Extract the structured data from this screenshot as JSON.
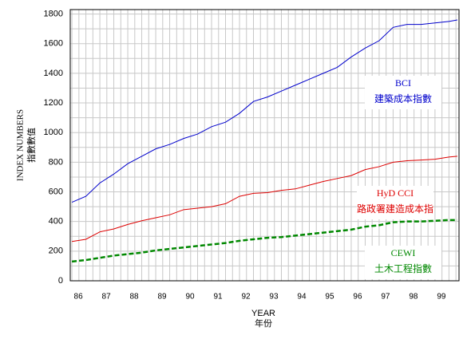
{
  "chart_data": {
    "type": "line",
    "y_label": [
      "INDEX NUMBERS",
      "指數數值"
    ],
    "x_label": [
      "YEAR",
      "年份"
    ],
    "x": [
      86,
      86.5,
      87,
      87.5,
      88,
      88.5,
      89,
      89.5,
      90,
      90.5,
      91,
      91.5,
      92,
      92.5,
      93,
      93.5,
      94,
      94.5,
      95,
      95.5,
      96,
      96.5,
      97,
      97.5,
      98,
      98.5,
      99,
      99.5,
      99.8
    ],
    "series": [
      {
        "name": "BCI",
        "name_zh": "建築成本指數",
        "color": "#0000cc",
        "dashed": false,
        "values": [
          530,
          570,
          660,
          720,
          790,
          840,
          890,
          920,
          960,
          990,
          1040,
          1070,
          1130,
          1210,
          1240,
          1280,
          1320,
          1360,
          1400,
          1440,
          1510,
          1570,
          1620,
          1710,
          1730,
          1730,
          1740,
          1750,
          1760
        ]
      },
      {
        "name": "HyD CCI",
        "name_zh": "路政署建造成本指",
        "color": "#dd0000",
        "dashed": false,
        "values": [
          265,
          280,
          330,
          350,
          380,
          405,
          425,
          445,
          480,
          490,
          500,
          520,
          570,
          590,
          595,
          610,
          620,
          645,
          670,
          690,
          710,
          750,
          770,
          800,
          810,
          815,
          820,
          835,
          840
        ]
      },
      {
        "name": "CEWI",
        "name_zh": "土木工程指數",
        "color": "#008800",
        "dashed": true,
        "values": [
          130,
          140,
          155,
          170,
          180,
          190,
          205,
          215,
          225,
          235,
          245,
          255,
          270,
          280,
          290,
          295,
          305,
          315,
          325,
          335,
          345,
          365,
          375,
          395,
          400,
          400,
          405,
          410,
          410
        ]
      }
    ],
    "xlim": [
      85.94,
      99.86
    ],
    "ylim": [
      0,
      1830
    ],
    "xticks": [
      86,
      87,
      88,
      89,
      90,
      91,
      92,
      93,
      94,
      95,
      96,
      97,
      98,
      99
    ],
    "yticks": [
      0,
      200,
      400,
      600,
      800,
      1000,
      1200,
      1400,
      1600,
      1800
    ],
    "grid": true,
    "minor_grid": true
  }
}
